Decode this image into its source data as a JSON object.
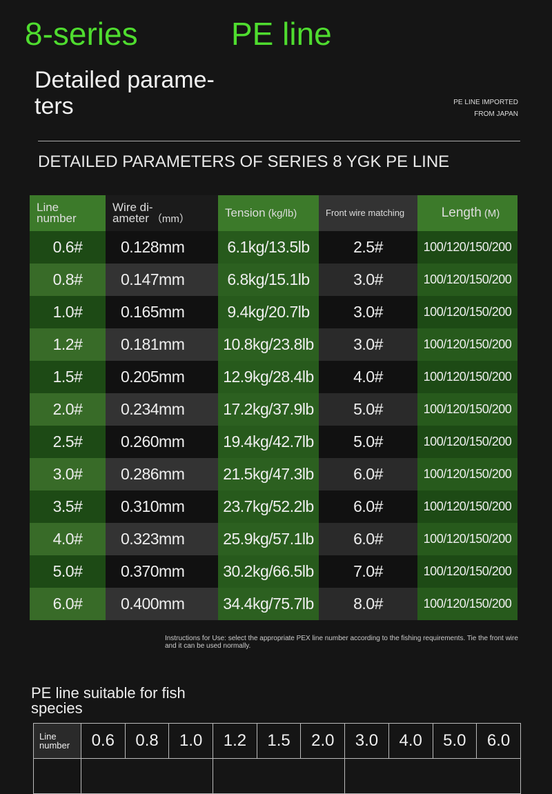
{
  "header": {
    "title_part1": "8-series",
    "title_part2": "PE line",
    "heading": "Detailed parame-\nters",
    "side_note_line1": "PE LINE IMPORTED",
    "side_note_line2": "FROM JAPAN",
    "subtitle": "DETAILED PARAMETERS OF SERIES 8 YGK PE LINE"
  },
  "table": {
    "headers": [
      {
        "main": "Line\nnumber"
      },
      {
        "main": "Wire di-\nameter",
        "unit": "（mm）"
      },
      {
        "main": "Tension",
        "unit": "(kg/lb)"
      },
      {
        "main": "Front wire matching"
      },
      {
        "main": "Length",
        "unit": "(M)"
      }
    ],
    "rows": [
      [
        "0.6#",
        "0.128mm",
        "6.1kg/13.5lb",
        "2.5#",
        "100/120/150/200"
      ],
      [
        "0.8#",
        "0.147mm",
        "6.8kg/15.1lb",
        "3.0#",
        "100/120/150/200"
      ],
      [
        "1.0#",
        "0.165mm",
        "9.4kg/20.7lb",
        "3.0#",
        "100/120/150/200"
      ],
      [
        "1.2#",
        "0.181mm",
        "10.8kg/23.8lb",
        "3.0#",
        "100/120/150/200"
      ],
      [
        "1.5#",
        "0.205mm",
        "12.9kg/28.4lb",
        "4.0#",
        "100/120/150/200"
      ],
      [
        "2.0#",
        "0.234mm",
        "17.2kg/37.9lb",
        "5.0#",
        "100/120/150/200"
      ],
      [
        "2.5#",
        "0.260mm",
        "19.4kg/42.7lb",
        "5.0#",
        "100/120/150/200"
      ],
      [
        "3.0#",
        "0.286mm",
        "21.5kg/47.3lb",
        "6.0#",
        "100/120/150/200"
      ],
      [
        "3.5#",
        "0.310mm",
        "23.7kg/52.2lb",
        "6.0#",
        "100/120/150/200"
      ],
      [
        "4.0#",
        "0.323mm",
        "25.9kg/57.1lb",
        "6.0#",
        "100/120/150/200"
      ],
      [
        "5.0#",
        "0.370mm",
        "30.2kg/66.5lb",
        "7.0#",
        "100/120/150/200"
      ],
      [
        "6.0#",
        "0.400mm",
        "34.4kg/75.7lb",
        "8.0#",
        "100/120/150/200"
      ]
    ]
  },
  "instructions": "Instructions for Use: select the appropriate PEX line number according to the fishing requirements. Tie the front wire and it can be used normally.",
  "fish": {
    "title": "PE line suitable for fish\nspecies",
    "row_label": "Line\nnumber",
    "numbers": [
      "0.6",
      "0.8",
      "1.0",
      "1.2",
      "1.5",
      "2.0",
      "3.0",
      "4.0",
      "5.0",
      "6.0"
    ]
  }
}
